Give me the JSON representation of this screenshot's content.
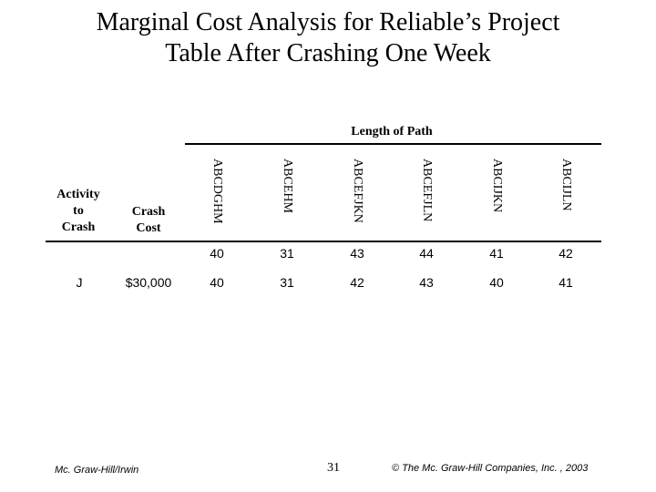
{
  "title_line1": "Marginal Cost Analysis for Reliable’s Project",
  "title_line2": "Table After Crashing One Week",
  "table": {
    "group_header": "Length of Path",
    "activity_header": "Activity to Crash",
    "activity_header_lines": [
      "Activity",
      "to",
      "Crash"
    ],
    "cost_header_lines": [
      "Crash",
      "Cost"
    ],
    "paths": [
      "ABCDGHM",
      "ABCEHM",
      "ABCEFJKN",
      "ABCEFJLN",
      "ABCIJKN",
      "ABCIJLN"
    ],
    "rows": [
      {
        "activity": "",
        "cost": "",
        "lengths": [
          "40",
          "31",
          "43",
          "44",
          "41",
          "42"
        ]
      },
      {
        "activity": "J",
        "cost": "$30,000",
        "lengths": [
          "40",
          "31",
          "42",
          "43",
          "40",
          "41"
        ]
      }
    ]
  },
  "footer": {
    "publisher": "Mc. Graw-Hill/Irwin",
    "page": "31",
    "copyright": "© The Mc. Graw-Hill Companies, Inc. , 2003"
  }
}
